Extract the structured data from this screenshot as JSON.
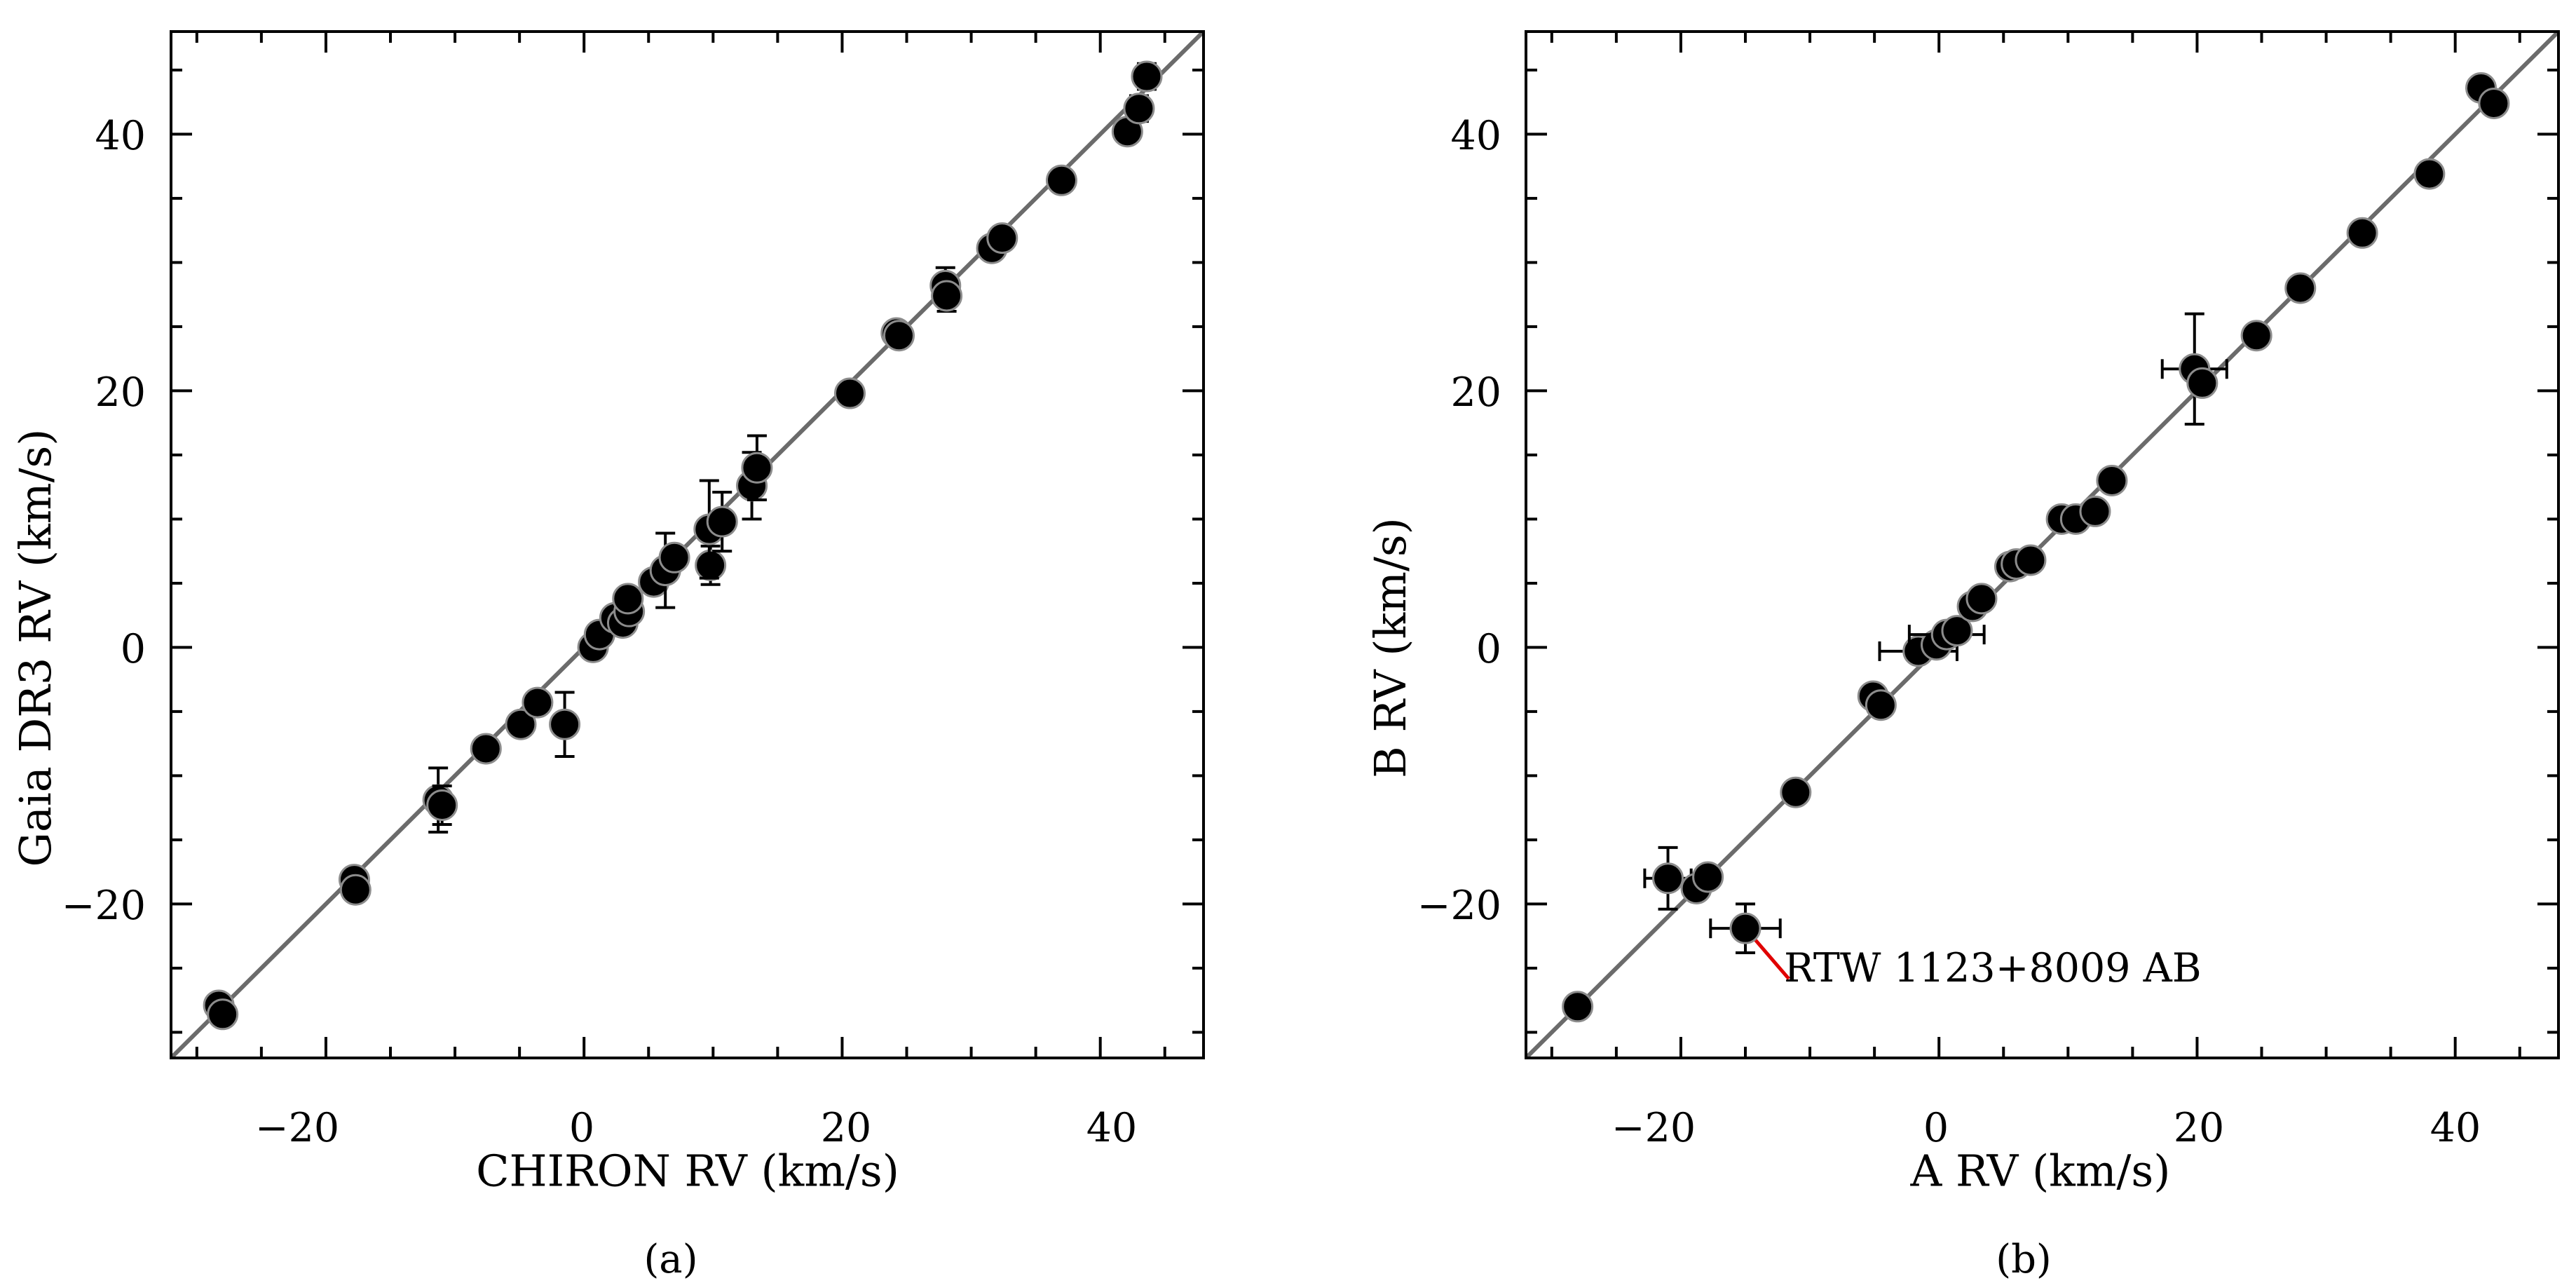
{
  "chart_data": [
    {
      "type": "scatter",
      "caption": "(a)",
      "xlabel": "CHIRON RV (km/s)",
      "ylabel": "Gaia DR3 RV (km/s)",
      "xlim": [
        -32,
        48
      ],
      "ylim": [
        -32,
        48
      ],
      "xticks": [
        -20,
        0,
        20,
        40
      ],
      "yticks": [
        -20,
        0,
        20,
        40
      ],
      "xtick_labels": [
        "−20",
        "0",
        "20",
        "40"
      ],
      "ytick_labels": [
        "−20",
        "0",
        "20",
        "40"
      ],
      "reference_line": "y = x",
      "points": [
        {
          "x": -28.3,
          "y": -27.9
        },
        {
          "x": -28.0,
          "y": -28.6
        },
        {
          "x": -17.8,
          "y": -18.1
        },
        {
          "x": -17.7,
          "y": -18.9
        },
        {
          "x": -11.3,
          "y": -11.9,
          "yerr": 2.5
        },
        {
          "x": -11.0,
          "y": -12.3,
          "yerr": 1.5
        },
        {
          "x": -7.6,
          "y": -7.9
        },
        {
          "x": -4.9,
          "y": -6.0
        },
        {
          "x": -3.6,
          "y": -4.3
        },
        {
          "x": -1.5,
          "y": -6.0,
          "yerr": 2.5
        },
        {
          "x": 0.7,
          "y": 0.0
        },
        {
          "x": 1.2,
          "y": 1.0
        },
        {
          "x": 2.4,
          "y": 2.3
        },
        {
          "x": 3.0,
          "y": 1.9
        },
        {
          "x": 3.5,
          "y": 2.8
        },
        {
          "x": 3.4,
          "y": 3.8
        },
        {
          "x": 5.4,
          "y": 5.1
        },
        {
          "x": 6.3,
          "y": 6.0,
          "yerr": 2.9
        },
        {
          "x": 7.0,
          "y": 7.0
        },
        {
          "x": 9.8,
          "y": 6.4,
          "yerr": 1.5
        },
        {
          "x": 9.7,
          "y": 9.2,
          "yerr": 3.8
        },
        {
          "x": 10.7,
          "y": 9.8,
          "yerr": 2.3
        },
        {
          "x": 13.0,
          "y": 12.6,
          "yerr": 2.6
        },
        {
          "x": 13.4,
          "y": 14.0,
          "yerr": 2.5
        },
        {
          "x": 20.6,
          "y": 19.8
        },
        {
          "x": 24.2,
          "y": 24.5
        },
        {
          "x": 24.4,
          "y": 24.3
        },
        {
          "x": 28.0,
          "y": 28.2,
          "yerr": 1.4
        },
        {
          "x": 28.1,
          "y": 27.4,
          "yerr": 1.2
        },
        {
          "x": 31.6,
          "y": 31.1
        },
        {
          "x": 32.4,
          "y": 31.9
        },
        {
          "x": 37.0,
          "y": 36.4
        },
        {
          "x": 42.1,
          "y": 40.2
        },
        {
          "x": 43.0,
          "y": 42.0,
          "yerr": 1.0
        },
        {
          "x": 43.6,
          "y": 44.5,
          "yerr": 1.0
        }
      ]
    },
    {
      "type": "scatter",
      "caption": "(b)",
      "xlabel": "A  RV (km/s)",
      "ylabel": "B  RV (km/s)",
      "xlim": [
        -32,
        48
      ],
      "ylim": [
        -32,
        48
      ],
      "xticks": [
        -20,
        0,
        20,
        40
      ],
      "yticks": [
        -20,
        0,
        20,
        40
      ],
      "xtick_labels": [
        "−20",
        "0",
        "20",
        "40"
      ],
      "ytick_labels": [
        "−20",
        "0",
        "20",
        "40"
      ],
      "reference_line": "y = x",
      "annotation": {
        "text": "RTW 1123+8009 AB",
        "x": -15.0,
        "y": -21.9
      },
      "points": [
        {
          "x": -28.0,
          "y": -28.0
        },
        {
          "x": -21.0,
          "y": -18.0,
          "xerr": 1.8,
          "yerr": 2.4
        },
        {
          "x": -18.8,
          "y": -18.8
        },
        {
          "x": -17.9,
          "y": -17.9
        },
        {
          "x": -15.0,
          "y": -21.9,
          "xerr": 2.7,
          "yerr": 1.9
        },
        {
          "x": -11.1,
          "y": -11.3
        },
        {
          "x": -5.1,
          "y": -3.8
        },
        {
          "x": -4.5,
          "y": -4.5
        },
        {
          "x": -1.6,
          "y": -0.3,
          "xerr": 3.0
        },
        {
          "x": -0.2,
          "y": 0.2
        },
        {
          "x": 0.6,
          "y": 1.0,
          "xerr": 2.9
        },
        {
          "x": 1.4,
          "y": 1.3
        },
        {
          "x": 2.6,
          "y": 3.2
        },
        {
          "x": 3.3,
          "y": 3.8
        },
        {
          "x": 5.5,
          "y": 6.3
        },
        {
          "x": 6.0,
          "y": 6.5
        },
        {
          "x": 7.1,
          "y": 6.8
        },
        {
          "x": 9.5,
          "y": 10.0
        },
        {
          "x": 10.6,
          "y": 10.0
        },
        {
          "x": 12.1,
          "y": 10.6
        },
        {
          "x": 13.4,
          "y": 13.0
        },
        {
          "x": 19.8,
          "y": 21.7,
          "xerr": 2.5,
          "yerr": 4.3
        },
        {
          "x": 20.4,
          "y": 20.6
        },
        {
          "x": 24.6,
          "y": 24.3
        },
        {
          "x": 28.0,
          "y": 28.0
        },
        {
          "x": 32.8,
          "y": 32.3
        },
        {
          "x": 38.0,
          "y": 36.9
        },
        {
          "x": 42.0,
          "y": 43.6
        },
        {
          "x": 43.0,
          "y": 42.4
        }
      ]
    }
  ]
}
